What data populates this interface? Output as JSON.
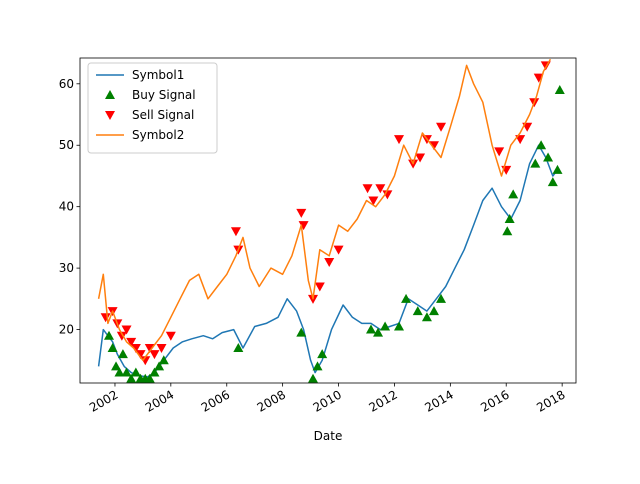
{
  "chart_data": {
    "type": "line",
    "xlabel": "Date",
    "ylabel": "",
    "xlim": [
      "2000-10-01",
      "2018-07-01"
    ],
    "ylim": [
      11.3,
      64.2
    ],
    "x_ticks": [
      "2002",
      "2004",
      "2006",
      "2008",
      "2010",
      "2012",
      "2014",
      "2016",
      "2018"
    ],
    "y_ticks": [
      20,
      30,
      40,
      50,
      60
    ],
    "grid": false,
    "legend_placement": "upper-left",
    "legend": [
      "Symbol1",
      "Buy Signal",
      "Sell Signal",
      "Symbol2"
    ],
    "colors": {
      "symbol1": "#1f77b4",
      "symbol2": "#ff7f0e",
      "buy": "#008000",
      "sell": "#ff0000"
    },
    "series": [
      {
        "name": "Symbol1",
        "marker": "line",
        "x": [
          "2001-06-01",
          "2001-08-01",
          "2001-10-01",
          "2001-12-01",
          "2002-02-01",
          "2002-05-01",
          "2002-08-01",
          "2002-11-01",
          "2003-03-01",
          "2003-06-01",
          "2003-10-01",
          "2004-02-01",
          "2004-06-01",
          "2004-10-01",
          "2005-03-01",
          "2005-07-01",
          "2005-11-01",
          "2006-04-01",
          "2006-08-01",
          "2007-01-01",
          "2007-06-01",
          "2007-11-01",
          "2008-03-01",
          "2008-07-01",
          "2008-10-01",
          "2009-01-01",
          "2009-03-01",
          "2009-06-01",
          "2009-10-01",
          "2010-03-01",
          "2010-07-01",
          "2010-11-01",
          "2011-03-01",
          "2011-07-01",
          "2011-11-01",
          "2012-03-01",
          "2012-07-01",
          "2012-11-01",
          "2013-03-01",
          "2013-07-01",
          "2013-11-01",
          "2014-03-01",
          "2014-07-01",
          "2014-11-01",
          "2015-03-01",
          "2015-07-01",
          "2015-11-01",
          "2016-03-01",
          "2016-07-01",
          "2016-11-01",
          "2017-03-01",
          "2017-06-01",
          "2017-09-01",
          "2017-11-01"
        ],
        "y": [
          14,
          20,
          19,
          18,
          16,
          14,
          13,
          12.5,
          12.3,
          13,
          15,
          17,
          18,
          18.5,
          19,
          18.5,
          19.5,
          20,
          17,
          20.5,
          21,
          22,
          25,
          23,
          20,
          15,
          13,
          15,
          20,
          24,
          22,
          21,
          21,
          20,
          20.5,
          21,
          25,
          24,
          23,
          25,
          27,
          30,
          33,
          37,
          41,
          43,
          40,
          38,
          41,
          47,
          50,
          48,
          45,
          46
        ]
      },
      {
        "name": "Symbol2",
        "marker": "line",
        "x": [
          "2001-06-01",
          "2001-08-01",
          "2001-10-01",
          "2001-12-01",
          "2002-03-01",
          "2002-06-01",
          "2002-09-01",
          "2003-01-01",
          "2003-05-01",
          "2003-09-01",
          "2004-01-01",
          "2004-05-01",
          "2004-09-01",
          "2005-01-01",
          "2005-05-01",
          "2005-09-01",
          "2006-01-01",
          "2006-05-01",
          "2006-08-01",
          "2006-11-01",
          "2007-03-01",
          "2007-08-01",
          "2008-01-01",
          "2008-05-01",
          "2008-09-01",
          "2008-12-01",
          "2009-02-01",
          "2009-05-01",
          "2009-09-01",
          "2010-01-01",
          "2010-05-01",
          "2010-09-01",
          "2011-01-01",
          "2011-05-01",
          "2011-09-01",
          "2012-01-01",
          "2012-05-01",
          "2012-09-01",
          "2013-01-01",
          "2013-05-01",
          "2013-09-01",
          "2014-01-01",
          "2014-05-01",
          "2014-08-01",
          "2014-11-01",
          "2015-03-01",
          "2015-07-01",
          "2015-11-01",
          "2016-03-01",
          "2016-07-01",
          "2016-11-01",
          "2017-02-01",
          "2017-05-01",
          "2017-08-01"
        ],
        "y": [
          25,
          29,
          21,
          23,
          20,
          18,
          17,
          15,
          17,
          19,
          22,
          25,
          28,
          29,
          25,
          27,
          29,
          32,
          35,
          30,
          27,
          30,
          29,
          32,
          37,
          28,
          25,
          33,
          32,
          37,
          36,
          38,
          41,
          40,
          42,
          45,
          50,
          47,
          52,
          50,
          48,
          53,
          58,
          63,
          60,
          57,
          50,
          45,
          50,
          52,
          55,
          58,
          62,
          64
        ]
      },
      {
        "name": "Buy Signal",
        "marker": "triangle-up",
        "x": [
          "2001-10-15",
          "2001-12-01",
          "2002-01-15",
          "2002-03-01",
          "2002-04-15",
          "2002-06-01",
          "2002-08-01",
          "2002-10-01",
          "2002-12-01",
          "2003-02-01",
          "2003-04-01",
          "2003-06-01",
          "2003-08-01",
          "2003-10-01",
          "2006-06-01",
          "2008-09-01",
          "2009-02-01",
          "2009-04-01",
          "2009-06-01",
          "2011-03-01",
          "2011-06-01",
          "2011-09-01",
          "2012-03-01",
          "2012-06-01",
          "2012-11-01",
          "2013-03-01",
          "2013-06-01",
          "2013-09-01",
          "2016-01-15",
          "2016-02-15",
          "2016-04-01",
          "2017-01-15",
          "2017-04-01",
          "2017-07-01",
          "2017-09-01",
          "2017-11-01",
          "2017-12-01"
        ],
        "y": [
          19,
          17,
          14,
          13,
          16,
          13,
          12,
          13,
          12,
          12,
          12,
          13,
          14,
          15,
          17,
          19.5,
          12,
          14,
          16,
          20,
          19.5,
          20.5,
          20.5,
          25,
          23,
          22,
          23,
          25,
          36,
          38,
          42,
          47,
          50,
          48,
          44,
          46,
          59
        ]
      },
      {
        "name": "Sell Signal",
        "marker": "triangle-down",
        "x": [
          "2001-09-01",
          "2001-12-01",
          "2002-02-01",
          "2002-04-01",
          "2002-06-01",
          "2002-08-01",
          "2002-10-01",
          "2002-12-01",
          "2003-02-01",
          "2003-04-01",
          "2003-06-01",
          "2003-09-01",
          "2004-01-01",
          "2006-05-01",
          "2006-06-01",
          "2008-09-01",
          "2008-10-01",
          "2009-02-01",
          "2009-05-01",
          "2009-09-01",
          "2010-01-01",
          "2011-01-15",
          "2011-04-01",
          "2011-07-01",
          "2011-10-01",
          "2012-03-01",
          "2012-09-01",
          "2012-12-01",
          "2013-03-01",
          "2013-06-01",
          "2013-09-01",
          "2015-10-01",
          "2016-01-01",
          "2016-07-01",
          "2016-10-01",
          "2017-01-01",
          "2017-03-01",
          "2017-06-01"
        ],
        "y": [
          22,
          23,
          21,
          19,
          20,
          18,
          17,
          16,
          15,
          17,
          16,
          17,
          19,
          36,
          33,
          39,
          37,
          25,
          27,
          31,
          33,
          43,
          41,
          43,
          42,
          51,
          47,
          48,
          51,
          50,
          53,
          49,
          46,
          51,
          53,
          57,
          61,
          63
        ]
      }
    ]
  }
}
